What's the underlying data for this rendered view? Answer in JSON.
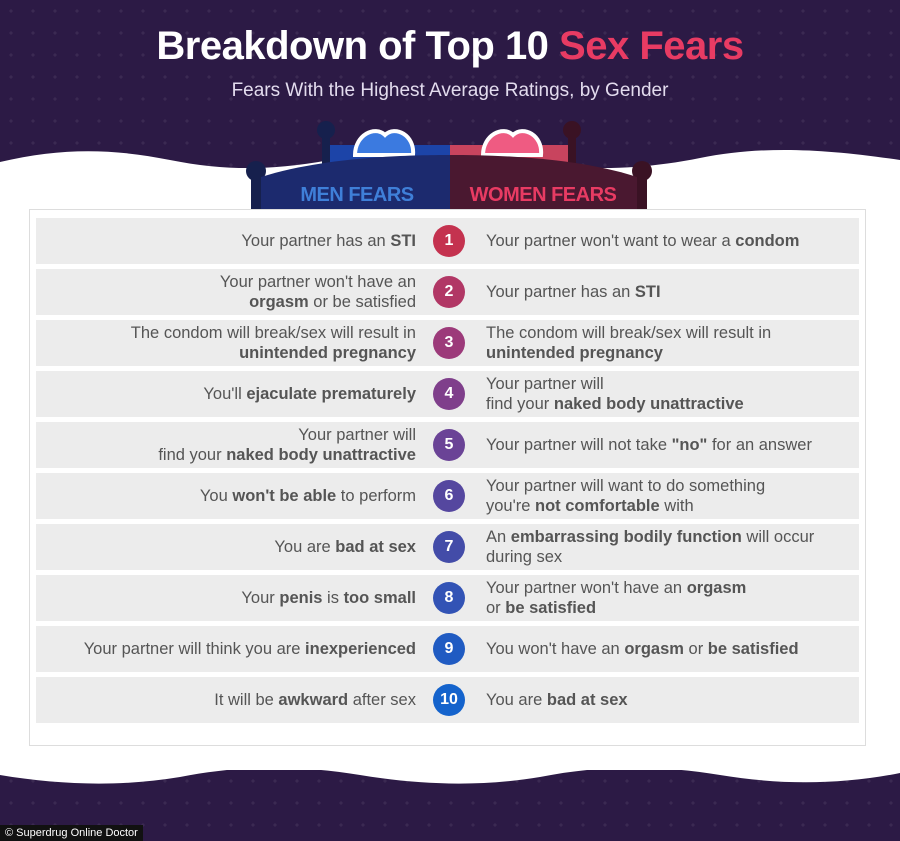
{
  "header": {
    "title_part1": "Breakdown of Top 10 ",
    "title_accent": "Sex Fears",
    "subtitle": "Fears With the Highest Average Ratings, by Gender",
    "men_label": "MEN FEARS",
    "women_label": "WOMEN FEARS"
  },
  "colors": {
    "background": "#2c1a45",
    "accent_pink": "#e83b63",
    "men_blue": "#3f7fd8"
  },
  "rows": [
    {
      "rank": "1",
      "color": "#c4324f",
      "men_html": "Your partner has an <b>STI</b>",
      "women_html": "Your partner won't want to wear a <b>condom</b>"
    },
    {
      "rank": "2",
      "color": "#b13765",
      "men_html": "Your partner won't have an<br><b>orgasm</b> or be satisfied",
      "women_html": "Your partner has an <b>STI</b>"
    },
    {
      "rank": "3",
      "color": "#9c3a7a",
      "men_html": "The condom will break/sex will result in<br><b>unintended pregnancy</b>",
      "women_html": "The condom will break/sex will result in<br><b>unintended pregnancy</b>"
    },
    {
      "rank": "4",
      "color": "#7f3f8b",
      "men_html": "You'll <b>ejaculate prematurely</b>",
      "women_html": "Your partner will<br>find your <b>naked body unattractive</b>"
    },
    {
      "rank": "5",
      "color": "#6a4396",
      "men_html": "Your partner will<br>find your <b>naked body unattractive</b>",
      "women_html": "Your partner will not take <b>\"no\"</b> for an answer"
    },
    {
      "rank": "6",
      "color": "#55479f",
      "men_html": "You <b>won't be able</b> to perform",
      "women_html": "Your partner will want to do something<br>you're <b>not comfortable</b> with"
    },
    {
      "rank": "7",
      "color": "#434ca8",
      "men_html": "You are <b>bad at sex</b>",
      "women_html": "An <b>embarrassing bodily function</b> will occur<br>during sex"
    },
    {
      "rank": "8",
      "color": "#3253b5",
      "men_html": "Your <b>penis</b> is <b>too small</b>",
      "women_html": "Your partner won't have an <b>orgasm</b><br>or <b>be satisfied</b>"
    },
    {
      "rank": "9",
      "color": "#205bc2",
      "men_html": "Your partner will think you are <b>inexperienced</b>",
      "women_html": "You won't have an <b>orgasm</b> or <b>be satisfied</b>"
    },
    {
      "rank": "10",
      "color": "#1463cc",
      "men_html": "It will be <b>awkward</b> after sex",
      "women_html": "You are <b>bad at sex</b>"
    }
  ],
  "footer": {
    "credit": "© Superdrug Online Doctor"
  }
}
